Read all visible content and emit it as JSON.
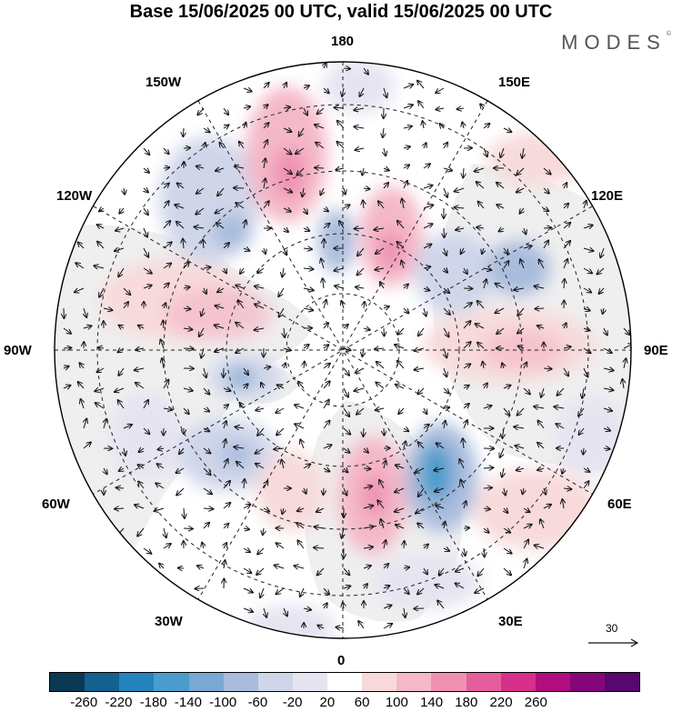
{
  "title": "Base 15/06/2025 00 UTC, valid 15/06/2025 00 UTC",
  "brand": {
    "name": "MODES",
    "mark": "©"
  },
  "map": {
    "projection": "north polar stereographic",
    "longitude_labels": {
      "top": "180",
      "top_left": "150W",
      "top_right": "150E",
      "upper_left": "120W",
      "upper_right": "120E",
      "left": "90W",
      "right": "90E",
      "lower_left": "60W",
      "lower_right": "60E",
      "bottom_left": "30W",
      "bottom_right": "30E",
      "bottom": "0"
    },
    "vector_reference": {
      "label": "30"
    }
  },
  "colorbar": {
    "colors": [
      "#0b3954",
      "#14608f",
      "#2583bd",
      "#4a9ccc",
      "#7aa8d3",
      "#a9bcdd",
      "#cfd6ea",
      "#e6e4f1",
      "#ffffff",
      "#f8dada",
      "#f4b8c8",
      "#ef90b2",
      "#e65d9c",
      "#d6308a",
      "#b10d7e",
      "#85067a",
      "#56086e"
    ],
    "tick_labels": [
      "-260",
      "-220",
      "-180",
      "-140",
      "-100",
      "-60",
      "-20",
      "20",
      "60",
      "100",
      "140",
      "180",
      "220",
      "260"
    ]
  },
  "colors": {
    "land": "#efefef",
    "ocean": "#ffffff",
    "vector": "#111111"
  }
}
